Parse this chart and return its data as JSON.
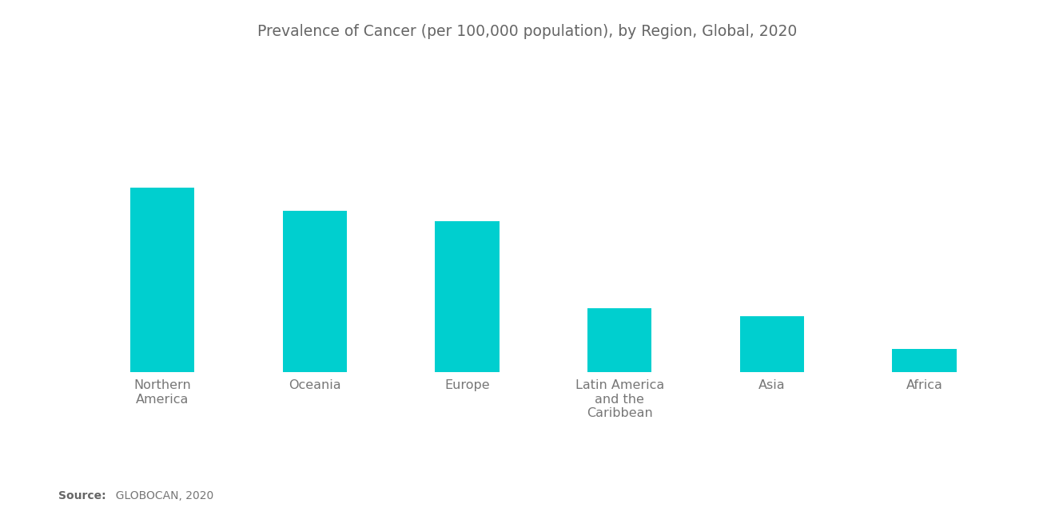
{
  "title": "Prevalence of Cancer (per 100,000 population), by Region, Global, 2020",
  "categories": [
    "Northern\nAmerica",
    "Oceania",
    "Europe",
    "Latin America\nand the\nCaribbean",
    "Asia",
    "Africa"
  ],
  "values": [
    3320,
    2900,
    2720,
    1150,
    1000,
    410
  ],
  "bar_color": "#00CFCF",
  "background_color": "#FFFFFF",
  "title_fontsize": 13.5,
  "tick_fontsize": 11.5,
  "source_bold": "Source:",
  "source_normal": "  GLOBOCAN, 2020",
  "ylim": [
    0,
    4600
  ],
  "bar_width": 0.42
}
